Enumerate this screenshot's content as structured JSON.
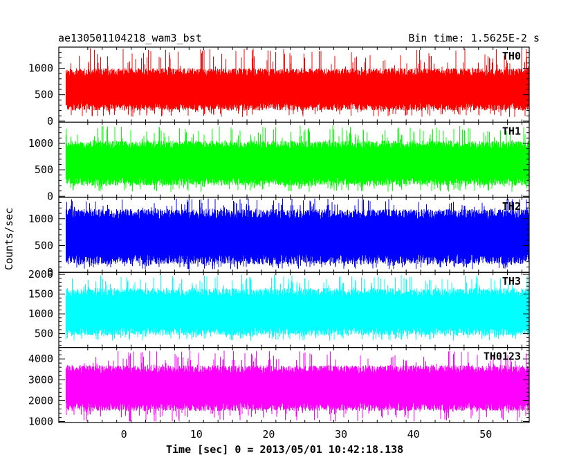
{
  "title_left": "ae130501104218_wam3_bst",
  "title_right": "Bin time: 1.5625E-2 s",
  "chart_data": {
    "type": "line",
    "xlabel": "Time [sec] 0 = 2013/05/01 10:42:18.138",
    "ylabel": "Counts/sec",
    "xlim": [
      -9,
      56
    ],
    "x_ticks": [
      0,
      10,
      20,
      30,
      40,
      50
    ],
    "x_tick_labels": [
      "0",
      "10",
      "20",
      "30",
      "40",
      "50"
    ],
    "data_x_range": [
      -8,
      56
    ],
    "panels": [
      {
        "name": "TH0",
        "color": "#ff0000",
        "ylim": [
          -20,
          1400
        ],
        "y_ticks": [
          0,
          500,
          1000
        ],
        "y_tick_labels": [
          "0",
          "500",
          "1000"
        ],
        "level_typical": [
          200,
          1000
        ],
        "level_extreme": [
          80,
          1380
        ]
      },
      {
        "name": "TH1",
        "color": "#00ff00",
        "ylim": [
          -20,
          1400
        ],
        "y_ticks": [
          0,
          500,
          1000
        ],
        "y_tick_labels": [
          "0",
          "500",
          "1000"
        ],
        "level_typical": [
          200,
          1050
        ],
        "level_extreme": [
          80,
          1340
        ]
      },
      {
        "name": "TH2",
        "color": "#0000ff",
        "ylim": [
          0,
          1400
        ],
        "y_ticks": [
          0,
          500,
          1000
        ],
        "y_tick_labels": [
          "0",
          "500",
          "1000"
        ],
        "level_typical": [
          150,
          1180
        ],
        "level_extreme": [
          60,
          1380
        ]
      },
      {
        "name": "TH3",
        "color": "#00ffff",
        "ylim": [
          150,
          2050
        ],
        "y_ticks": [
          500,
          1000,
          1500,
          2000
        ],
        "y_tick_labels": [
          "500",
          "1000",
          "1500",
          "2000"
        ],
        "level_typical": [
          450,
          1650
        ],
        "level_extreme": [
          320,
          2000
        ]
      },
      {
        "name": "TH0123",
        "color": "#ff00ff",
        "ylim": [
          950,
          4550
        ],
        "y_ticks": [
          1000,
          2000,
          3000,
          4000
        ],
        "y_tick_labels": [
          "1000",
          "2000",
          "3000",
          "4000"
        ],
        "level_typical": [
          1500,
          3700
        ],
        "level_extreme": [
          1000,
          4400
        ]
      }
    ]
  }
}
